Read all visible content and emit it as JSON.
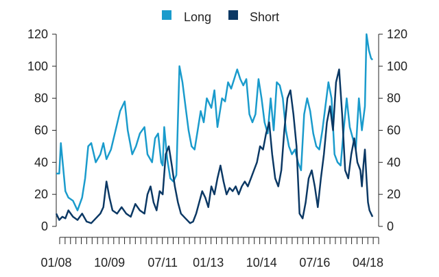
{
  "chart_data": {
    "type": "line",
    "legend": {
      "placement": "top-center",
      "entries": [
        "Long",
        "Short"
      ]
    },
    "x_tick_labels": [
      "01/08",
      "10/09",
      "07/11",
      "01/13",
      "10/14",
      "07/16",
      "04/18"
    ],
    "x_tick_dates": [
      2008.0,
      2009.75,
      2011.5,
      2013.0,
      2014.75,
      2016.5,
      2018.25
    ],
    "xlim": [
      2008.0,
      2018.6
    ],
    "ylim": [
      0,
      120
    ],
    "yticks": [
      0,
      20,
      40,
      60,
      80,
      100,
      120
    ],
    "y_tick_labels": [
      "0",
      "20",
      "40",
      "60",
      "80",
      "100",
      "120"
    ],
    "right_axis_mirrors_left": true,
    "grid": false,
    "minor_tick_count": 60,
    "series": [
      {
        "name": "Long",
        "color": "#1a9bcc",
        "x": [
          2008.0,
          2008.1,
          2008.15,
          2008.22,
          2008.3,
          2008.4,
          2008.55,
          2008.7,
          2008.85,
          2008.95,
          2009.05,
          2009.15,
          2009.3,
          2009.45,
          2009.55,
          2009.65,
          2009.8,
          2009.95,
          2010.1,
          2010.25,
          2010.35,
          2010.5,
          2010.62,
          2010.75,
          2010.9,
          2011.0,
          2011.15,
          2011.25,
          2011.35,
          2011.45,
          2011.5,
          2011.55,
          2011.65,
          2011.75,
          2011.85,
          2011.95,
          2012.05,
          2012.15,
          2012.25,
          2012.35,
          2012.45,
          2012.55,
          2012.65,
          2012.75,
          2012.85,
          2012.95,
          2013.1,
          2013.2,
          2013.3,
          2013.45,
          2013.55,
          2013.65,
          2013.75,
          2013.85,
          2013.95,
          2014.05,
          2014.15,
          2014.25,
          2014.35,
          2014.45,
          2014.55,
          2014.65,
          2014.75,
          2014.85,
          2014.95,
          2015.05,
          2015.15,
          2015.25,
          2015.35,
          2015.45,
          2015.55,
          2015.65,
          2015.75,
          2015.85,
          2015.95,
          2016.05,
          2016.15,
          2016.25,
          2016.35,
          2016.45,
          2016.55,
          2016.65,
          2016.75,
          2016.85,
          2016.95,
          2017.05,
          2017.15,
          2017.25,
          2017.35,
          2017.45,
          2017.55,
          2017.65,
          2017.75,
          2017.85,
          2017.95,
          2018.05,
          2018.15,
          2018.2,
          2018.28,
          2018.35,
          2018.4
        ],
        "values": [
          33,
          33,
          52,
          38,
          22,
          18,
          16,
          10,
          18,
          30,
          50,
          52,
          40,
          45,
          52,
          42,
          48,
          60,
          72,
          78,
          60,
          45,
          50,
          58,
          62,
          45,
          40,
          55,
          58,
          40,
          38,
          62,
          42,
          30,
          28,
          32,
          100,
          90,
          75,
          60,
          50,
          48,
          60,
          72,
          65,
          80,
          74,
          85,
          62,
          80,
          78,
          90,
          86,
          92,
          98,
          92,
          88,
          92,
          70,
          65,
          70,
          92,
          80,
          65,
          58,
          80,
          60,
          90,
          88,
          80,
          60,
          50,
          45,
          48,
          40,
          35,
          70,
          80,
          72,
          58,
          50,
          48,
          60,
          75,
          90,
          80,
          45,
          40,
          38,
          60,
          80,
          62,
          55,
          48,
          80,
          60,
          75,
          120,
          110,
          105,
          104
        ]
      },
      {
        "name": "Short",
        "color": "#0b3864",
        "x": [
          2008.0,
          2008.1,
          2008.2,
          2008.3,
          2008.4,
          2008.55,
          2008.7,
          2008.85,
          2009.0,
          2009.15,
          2009.3,
          2009.45,
          2009.55,
          2009.65,
          2009.75,
          2009.85,
          2010.0,
          2010.15,
          2010.3,
          2010.45,
          2010.6,
          2010.75,
          2010.9,
          2011.0,
          2011.1,
          2011.2,
          2011.3,
          2011.4,
          2011.5,
          2011.6,
          2011.7,
          2011.8,
          2011.9,
          2012.0,
          2012.1,
          2012.25,
          2012.4,
          2012.5,
          2012.6,
          2012.7,
          2012.8,
          2012.9,
          2013.0,
          2013.1,
          2013.2,
          2013.3,
          2013.4,
          2013.5,
          2013.6,
          2013.7,
          2013.8,
          2013.9,
          2014.0,
          2014.1,
          2014.2,
          2014.3,
          2014.4,
          2014.5,
          2014.6,
          2014.7,
          2014.8,
          2014.9,
          2015.0,
          2015.1,
          2015.2,
          2015.3,
          2015.4,
          2015.5,
          2015.6,
          2015.7,
          2015.8,
          2015.9,
          2016.0,
          2016.1,
          2016.2,
          2016.3,
          2016.4,
          2016.5,
          2016.6,
          2016.7,
          2016.8,
          2016.9,
          2017.0,
          2017.1,
          2017.2,
          2017.3,
          2017.4,
          2017.5,
          2017.6,
          2017.7,
          2017.8,
          2017.9,
          2018.0,
          2018.05,
          2018.1,
          2018.15,
          2018.2,
          2018.25,
          2018.3,
          2018.35,
          2018.4
        ],
        "values": [
          8,
          4,
          6,
          5,
          10,
          6,
          4,
          8,
          3,
          2,
          5,
          8,
          12,
          28,
          18,
          10,
          8,
          12,
          8,
          6,
          14,
          10,
          8,
          20,
          25,
          15,
          10,
          22,
          20,
          45,
          50,
          38,
          25,
          15,
          8,
          5,
          2,
          3,
          8,
          15,
          22,
          18,
          12,
          25,
          20,
          30,
          38,
          28,
          20,
          24,
          22,
          25,
          20,
          25,
          28,
          25,
          30,
          35,
          40,
          50,
          48,
          58,
          65,
          45,
          30,
          25,
          35,
          60,
          80,
          85,
          70,
          50,
          8,
          5,
          15,
          30,
          35,
          25,
          12,
          30,
          45,
          65,
          75,
          60,
          90,
          98,
          70,
          35,
          30,
          45,
          55,
          40,
          35,
          25,
          38,
          48,
          30,
          15,
          10,
          8,
          6
        ]
      }
    ]
  }
}
